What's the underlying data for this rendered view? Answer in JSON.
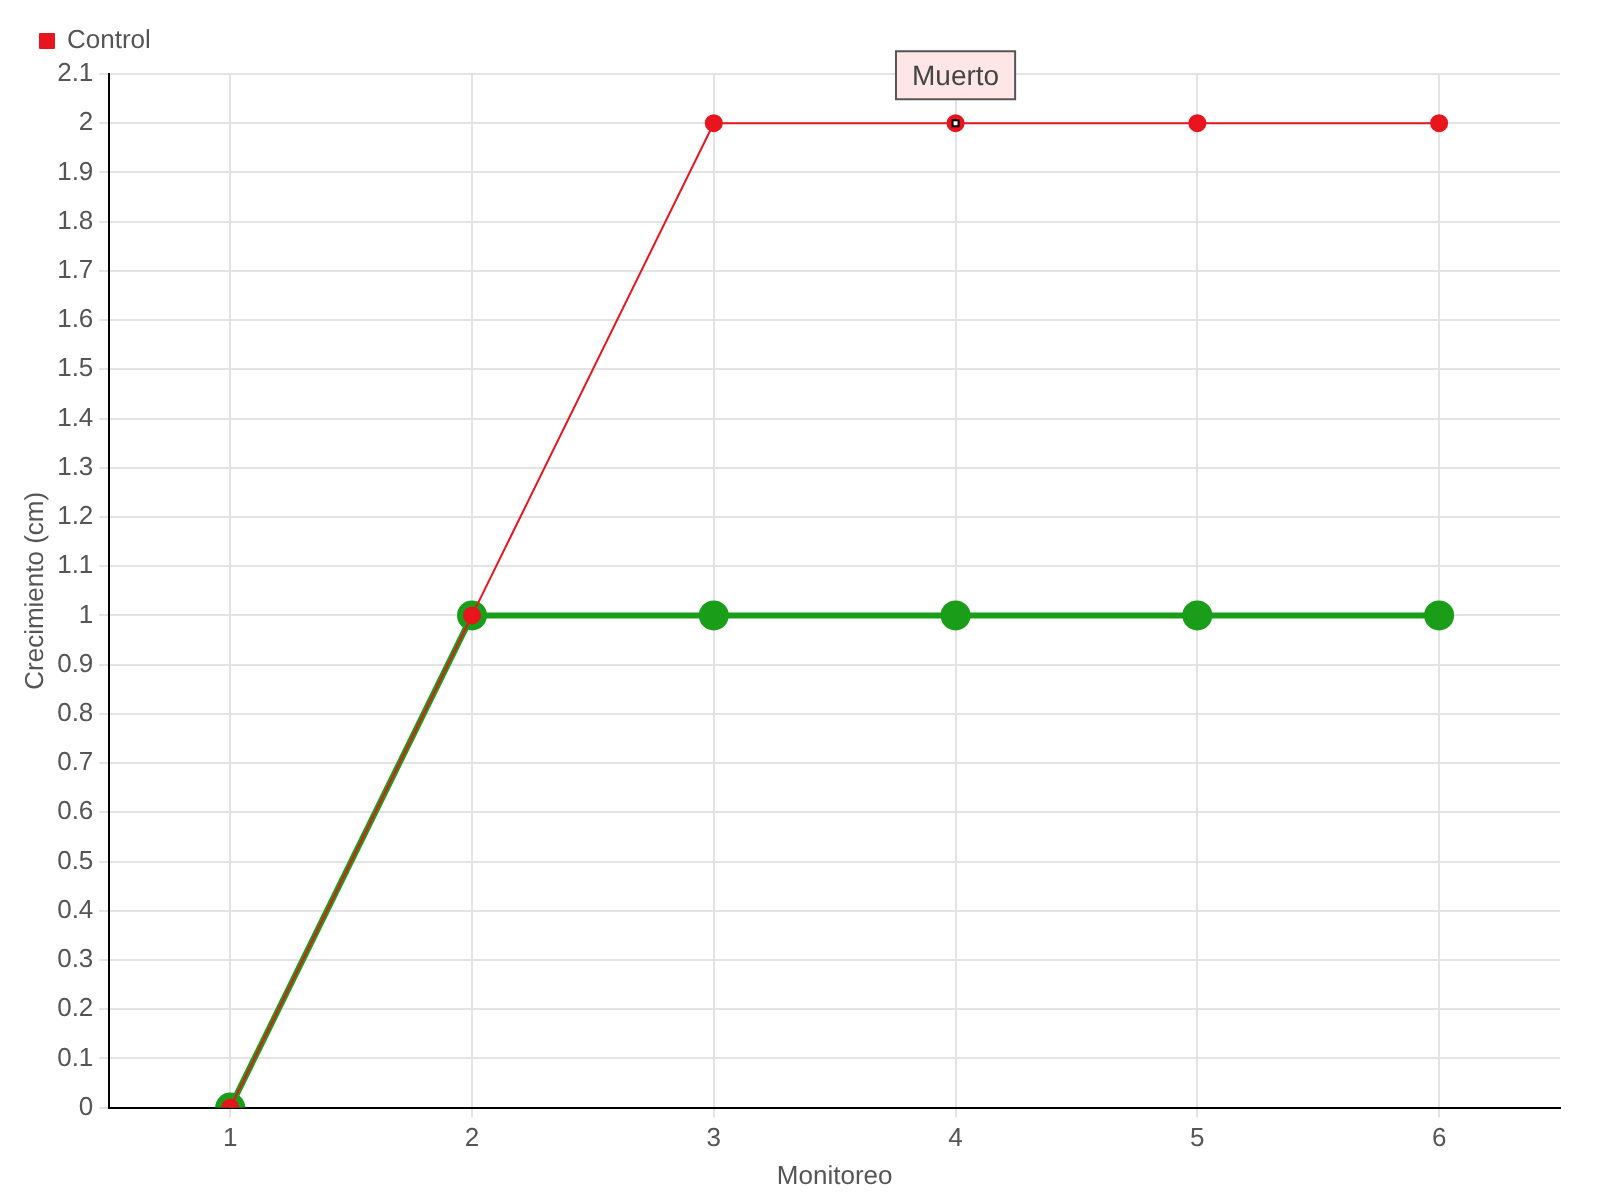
{
  "chart_data": {
    "type": "line",
    "xlabel": "Monitoreo",
    "ylabel": "Crecimiento (cm)",
    "x": [
      1,
      2,
      3,
      4,
      5,
      6
    ],
    "series": [
      {
        "color": "#1a9e1a",
        "values": [
          0,
          1,
          1,
          1,
          1,
          1
        ]
      },
      {
        "name": "Control",
        "color": "#e8141e",
        "values": [
          0,
          1,
          2,
          2,
          2,
          2
        ]
      }
    ],
    "xlim": [
      0.5,
      6.5
    ],
    "xticks": [
      1,
      2,
      3,
      4,
      5,
      6
    ],
    "ylim": [
      0,
      2.1
    ],
    "yticks": [
      0,
      0.1,
      0.2,
      0.3,
      0.4,
      0.5,
      0.6,
      0.7,
      0.8,
      0.9,
      1,
      1.1,
      1.2,
      1.3,
      1.4,
      1.5,
      1.6,
      1.7,
      1.8,
      1.9,
      2,
      2.1
    ],
    "grid": true,
    "legend": "top left",
    "marker": "circle",
    "line_style": "solid",
    "annotations": [
      {
        "text": "Muerto",
        "x": 4,
        "y": 2
      }
    ]
  }
}
